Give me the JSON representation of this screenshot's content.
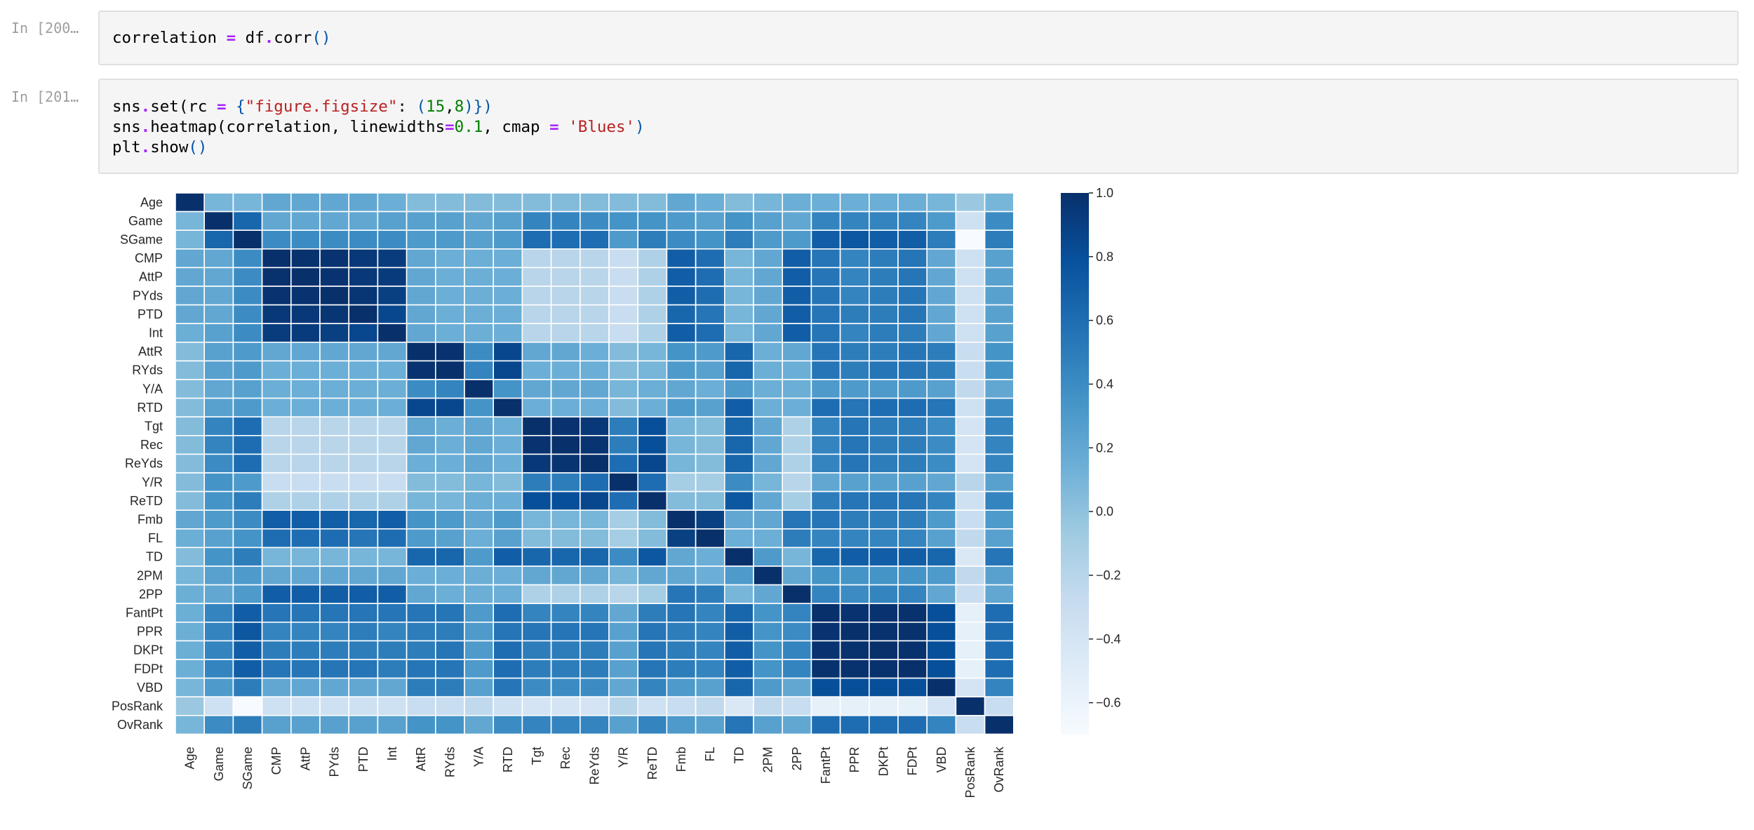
{
  "cells": [
    {
      "prompt": "In [200…",
      "lines": [
        [
          [
            "n",
            "correlation "
          ],
          [
            "o",
            "="
          ],
          [
            "n",
            " df"
          ],
          [
            "o",
            "."
          ],
          [
            "n",
            "corr"
          ],
          [
            "p",
            "()"
          ]
        ]
      ]
    },
    {
      "prompt": "In [201…",
      "lines": [
        [
          [
            "n",
            "sns"
          ],
          [
            "o",
            "."
          ],
          [
            "n",
            "set(rc "
          ],
          [
            "o",
            "="
          ],
          [
            "n",
            " "
          ],
          [
            "p",
            "{"
          ],
          [
            "s",
            "\"figure.figsize\""
          ],
          [
            "n",
            ": "
          ],
          [
            "p",
            "("
          ],
          [
            "g",
            "15"
          ],
          [
            "n",
            ","
          ],
          [
            "g",
            "8"
          ],
          [
            "p",
            ")})"
          ]
        ],
        [
          [
            "n",
            "sns"
          ],
          [
            "o",
            "."
          ],
          [
            "n",
            "heatmap(correlation, linewidths"
          ],
          [
            "o",
            "="
          ],
          [
            "g",
            "0.1"
          ],
          [
            "n",
            ", cmap "
          ],
          [
            "o",
            "="
          ],
          [
            "n",
            " "
          ],
          [
            "s",
            "'Blues'"
          ],
          [
            "p",
            ")"
          ]
        ],
        [
          [
            "n",
            "plt"
          ],
          [
            "o",
            "."
          ],
          [
            "n",
            "show"
          ],
          [
            "p",
            "()"
          ]
        ]
      ]
    }
  ],
  "colors": {
    "cmap_low": "#f7fbff",
    "cmap_high": "#08306b",
    "cell_bg": "#f5f5f5",
    "prompt": "#9e9e9e"
  },
  "chart_data": {
    "type": "heatmap",
    "title": "",
    "labels": [
      "Age",
      "Game",
      "SGame",
      "CMP",
      "AttP",
      "PYds",
      "PTD",
      "Int",
      "AttR",
      "RYds",
      "Y/A",
      "RTD",
      "Tgt",
      "Rec",
      "ReYds",
      "Y/R",
      "ReTD",
      "Fmb",
      "FL",
      "TD",
      "2PM",
      "2PP",
      "FantPt",
      "PPR",
      "DKPt",
      "FDPt",
      "VBD",
      "PosRank",
      "OvRank"
    ],
    "colorbar": {
      "ticks": [
        1.0,
        0.8,
        0.6,
        0.4,
        0.2,
        0.0,
        -0.2,
        -0.4,
        -0.6
      ],
      "tick_labels": [
        "1.0",
        "0.8",
        "0.6",
        "0.4",
        "0.2",
        "0.0",
        "−0.2",
        "−0.4",
        "−0.6"
      ],
      "vmin": -0.7,
      "vmax": 1.0
    },
    "cmap": "Blues",
    "values": [
      [
        1.0,
        0.1,
        0.1,
        0.2,
        0.2,
        0.2,
        0.2,
        0.15,
        0.05,
        0.05,
        0.05,
        0.05,
        0.05,
        0.05,
        0.05,
        0.05,
        0.05,
        0.2,
        0.15,
        0.05,
        0.1,
        0.15,
        0.15,
        0.15,
        0.15,
        0.15,
        0.1,
        -0.05,
        0.1
      ],
      [
        0.1,
        1.0,
        0.65,
        0.2,
        0.2,
        0.2,
        0.2,
        0.25,
        0.25,
        0.25,
        0.2,
        0.25,
        0.45,
        0.45,
        0.4,
        0.35,
        0.35,
        0.3,
        0.25,
        0.35,
        0.25,
        0.2,
        0.45,
        0.45,
        0.45,
        0.45,
        0.3,
        -0.35,
        0.4
      ],
      [
        0.1,
        0.65,
        1.0,
        0.4,
        0.4,
        0.4,
        0.4,
        0.4,
        0.3,
        0.3,
        0.25,
        0.3,
        0.6,
        0.6,
        0.6,
        0.3,
        0.5,
        0.4,
        0.35,
        0.5,
        0.3,
        0.3,
        0.7,
        0.75,
        0.7,
        0.7,
        0.5,
        -0.7,
        0.5
      ],
      [
        0.2,
        0.2,
        0.4,
        1.0,
        0.99,
        0.98,
        0.95,
        0.92,
        0.2,
        0.15,
        0.15,
        0.15,
        -0.2,
        -0.2,
        -0.2,
        -0.3,
        -0.15,
        0.7,
        0.6,
        0.1,
        0.2,
        0.7,
        0.55,
        0.45,
        0.5,
        0.55,
        0.2,
        -0.35,
        0.25
      ],
      [
        0.2,
        0.2,
        0.4,
        0.99,
        1.0,
        0.98,
        0.95,
        0.93,
        0.2,
        0.15,
        0.15,
        0.15,
        -0.2,
        -0.2,
        -0.2,
        -0.3,
        -0.15,
        0.7,
        0.6,
        0.1,
        0.2,
        0.7,
        0.55,
        0.45,
        0.5,
        0.55,
        0.2,
        -0.35,
        0.25
      ],
      [
        0.2,
        0.2,
        0.4,
        0.98,
        0.98,
        1.0,
        0.96,
        0.9,
        0.2,
        0.15,
        0.15,
        0.15,
        -0.2,
        -0.2,
        -0.2,
        -0.3,
        -0.15,
        0.7,
        0.6,
        0.1,
        0.2,
        0.7,
        0.55,
        0.45,
        0.5,
        0.55,
        0.2,
        -0.35,
        0.25
      ],
      [
        0.2,
        0.2,
        0.4,
        0.95,
        0.95,
        0.96,
        1.0,
        0.85,
        0.2,
        0.15,
        0.15,
        0.15,
        -0.2,
        -0.2,
        -0.2,
        -0.3,
        -0.15,
        0.65,
        0.55,
        0.1,
        0.2,
        0.7,
        0.55,
        0.5,
        0.5,
        0.55,
        0.2,
        -0.35,
        0.25
      ],
      [
        0.15,
        0.25,
        0.4,
        0.92,
        0.93,
        0.9,
        0.85,
        1.0,
        0.2,
        0.15,
        0.15,
        0.15,
        -0.2,
        -0.2,
        -0.2,
        -0.3,
        -0.15,
        0.7,
        0.6,
        0.1,
        0.2,
        0.7,
        0.55,
        0.45,
        0.5,
        0.5,
        0.2,
        -0.35,
        0.25
      ],
      [
        0.05,
        0.25,
        0.3,
        0.2,
        0.2,
        0.2,
        0.2,
        0.2,
        1.0,
        0.98,
        0.4,
        0.85,
        0.2,
        0.2,
        0.15,
        0.05,
        0.1,
        0.35,
        0.3,
        0.65,
        0.15,
        0.2,
        0.55,
        0.5,
        0.5,
        0.55,
        0.5,
        -0.3,
        0.35
      ],
      [
        0.05,
        0.25,
        0.3,
        0.15,
        0.15,
        0.15,
        0.15,
        0.15,
        0.98,
        1.0,
        0.45,
        0.85,
        0.15,
        0.15,
        0.15,
        0.05,
        0.1,
        0.3,
        0.25,
        0.65,
        0.15,
        0.15,
        0.55,
        0.5,
        0.55,
        0.55,
        0.5,
        -0.3,
        0.35
      ],
      [
        0.05,
        0.2,
        0.25,
        0.15,
        0.15,
        0.15,
        0.15,
        0.15,
        0.4,
        0.45,
        1.0,
        0.35,
        0.2,
        0.2,
        0.2,
        0.1,
        0.15,
        0.2,
        0.15,
        0.3,
        0.15,
        0.15,
        0.3,
        0.3,
        0.3,
        0.3,
        0.25,
        -0.25,
        0.2
      ],
      [
        0.05,
        0.25,
        0.3,
        0.15,
        0.15,
        0.15,
        0.15,
        0.15,
        0.85,
        0.85,
        0.35,
        1.0,
        0.15,
        0.15,
        0.15,
        0.05,
        0.15,
        0.3,
        0.25,
        0.7,
        0.15,
        0.15,
        0.6,
        0.55,
        0.6,
        0.6,
        0.55,
        -0.35,
        0.4
      ],
      [
        0.05,
        0.45,
        0.6,
        -0.2,
        -0.2,
        -0.2,
        -0.2,
        -0.2,
        0.2,
        0.15,
        0.2,
        0.15,
        1.0,
        0.98,
        0.95,
        0.5,
        0.8,
        0.1,
        0.05,
        0.65,
        0.2,
        -0.15,
        0.45,
        0.55,
        0.5,
        0.5,
        0.4,
        -0.4,
        0.45
      ],
      [
        0.05,
        0.45,
        0.6,
        -0.2,
        -0.2,
        -0.2,
        -0.2,
        -0.2,
        0.2,
        0.15,
        0.2,
        0.15,
        0.98,
        1.0,
        0.97,
        0.5,
        0.8,
        0.1,
        0.05,
        0.65,
        0.2,
        -0.15,
        0.45,
        0.55,
        0.5,
        0.5,
        0.4,
        -0.4,
        0.45
      ],
      [
        0.05,
        0.4,
        0.6,
        -0.2,
        -0.2,
        -0.2,
        -0.2,
        -0.2,
        0.15,
        0.15,
        0.2,
        0.15,
        0.95,
        0.97,
        1.0,
        0.6,
        0.85,
        0.1,
        0.05,
        0.65,
        0.2,
        -0.15,
        0.45,
        0.55,
        0.5,
        0.5,
        0.4,
        -0.4,
        0.45
      ],
      [
        0.05,
        0.35,
        0.3,
        -0.3,
        -0.3,
        -0.3,
        -0.3,
        -0.3,
        0.05,
        0.05,
        0.1,
        0.05,
        0.5,
        0.5,
        0.6,
        1.0,
        0.6,
        -0.1,
        -0.1,
        0.4,
        0.1,
        -0.2,
        0.2,
        0.25,
        0.25,
        0.25,
        0.2,
        -0.2,
        0.25
      ],
      [
        0.05,
        0.35,
        0.5,
        -0.15,
        -0.15,
        -0.15,
        -0.15,
        -0.15,
        0.1,
        0.1,
        0.15,
        0.15,
        0.8,
        0.8,
        0.85,
        0.6,
        1.0,
        0.05,
        0.05,
        0.75,
        0.2,
        -0.1,
        0.5,
        0.55,
        0.55,
        0.55,
        0.45,
        -0.35,
        0.45
      ],
      [
        0.2,
        0.3,
        0.4,
        0.7,
        0.7,
        0.7,
        0.65,
        0.7,
        0.35,
        0.3,
        0.2,
        0.3,
        0.1,
        0.1,
        0.1,
        -0.1,
        0.05,
        1.0,
        0.9,
        0.2,
        0.2,
        0.55,
        0.55,
        0.5,
        0.5,
        0.5,
        0.3,
        -0.3,
        0.3
      ],
      [
        0.15,
        0.25,
        0.35,
        0.6,
        0.6,
        0.6,
        0.55,
        0.6,
        0.3,
        0.25,
        0.15,
        0.25,
        0.05,
        0.05,
        0.05,
        -0.1,
        0.05,
        0.9,
        1.0,
        0.15,
        0.15,
        0.5,
        0.45,
        0.45,
        0.45,
        0.45,
        0.25,
        -0.25,
        0.25
      ],
      [
        0.05,
        0.35,
        0.5,
        0.1,
        0.1,
        0.1,
        0.1,
        0.1,
        0.65,
        0.65,
        0.3,
        0.7,
        0.65,
        0.65,
        0.65,
        0.4,
        0.75,
        0.2,
        0.15,
        1.0,
        0.3,
        0.1,
        0.65,
        0.7,
        0.7,
        0.7,
        0.65,
        -0.45,
        0.55
      ],
      [
        0.1,
        0.25,
        0.3,
        0.2,
        0.2,
        0.2,
        0.2,
        0.2,
        0.15,
        0.15,
        0.15,
        0.15,
        0.2,
        0.2,
        0.2,
        0.1,
        0.2,
        0.2,
        0.15,
        0.3,
        1.0,
        0.2,
        0.35,
        0.35,
        0.35,
        0.35,
        0.3,
        -0.25,
        0.25
      ],
      [
        0.15,
        0.2,
        0.3,
        0.7,
        0.7,
        0.7,
        0.7,
        0.7,
        0.2,
        0.15,
        0.15,
        0.15,
        -0.15,
        -0.15,
        -0.15,
        -0.2,
        -0.1,
        0.55,
        0.5,
        0.1,
        0.2,
        1.0,
        0.45,
        0.4,
        0.45,
        0.45,
        0.2,
        -0.3,
        0.2
      ],
      [
        0.15,
        0.45,
        0.7,
        0.55,
        0.55,
        0.55,
        0.55,
        0.55,
        0.55,
        0.55,
        0.3,
        0.6,
        0.45,
        0.45,
        0.45,
        0.2,
        0.5,
        0.55,
        0.45,
        0.65,
        0.35,
        0.45,
        1.0,
        0.98,
        0.98,
        0.99,
        0.8,
        -0.55,
        0.6
      ],
      [
        0.15,
        0.45,
        0.75,
        0.45,
        0.45,
        0.45,
        0.5,
        0.45,
        0.5,
        0.5,
        0.3,
        0.55,
        0.55,
        0.55,
        0.55,
        0.25,
        0.55,
        0.5,
        0.45,
        0.7,
        0.35,
        0.4,
        0.98,
        1.0,
        0.99,
        0.99,
        0.8,
        -0.55,
        0.6
      ],
      [
        0.15,
        0.45,
        0.7,
        0.5,
        0.5,
        0.5,
        0.5,
        0.5,
        0.5,
        0.55,
        0.3,
        0.6,
        0.5,
        0.5,
        0.5,
        0.25,
        0.55,
        0.5,
        0.45,
        0.7,
        0.35,
        0.45,
        0.98,
        0.99,
        1.0,
        0.99,
        0.8,
        -0.55,
        0.6
      ],
      [
        0.15,
        0.45,
        0.7,
        0.55,
        0.55,
        0.55,
        0.55,
        0.5,
        0.55,
        0.55,
        0.3,
        0.6,
        0.5,
        0.5,
        0.5,
        0.25,
        0.55,
        0.5,
        0.45,
        0.7,
        0.35,
        0.45,
        0.99,
        0.99,
        0.99,
        1.0,
        0.8,
        -0.55,
        0.6
      ],
      [
        0.1,
        0.3,
        0.5,
        0.2,
        0.2,
        0.2,
        0.2,
        0.2,
        0.5,
        0.5,
        0.25,
        0.55,
        0.4,
        0.4,
        0.4,
        0.2,
        0.45,
        0.3,
        0.25,
        0.65,
        0.3,
        0.2,
        0.8,
        0.8,
        0.8,
        0.8,
        1.0,
        -0.4,
        0.45
      ],
      [
        -0.05,
        -0.35,
        -0.7,
        -0.35,
        -0.35,
        -0.35,
        -0.35,
        -0.35,
        -0.3,
        -0.3,
        -0.25,
        -0.35,
        -0.4,
        -0.4,
        -0.4,
        -0.2,
        -0.35,
        -0.3,
        -0.25,
        -0.45,
        -0.25,
        -0.3,
        -0.55,
        -0.55,
        -0.55,
        -0.55,
        -0.4,
        1.0,
        -0.3
      ],
      [
        0.1,
        0.4,
        0.5,
        0.25,
        0.25,
        0.25,
        0.25,
        0.25,
        0.35,
        0.35,
        0.2,
        0.4,
        0.45,
        0.45,
        0.45,
        0.25,
        0.45,
        0.3,
        0.25,
        0.55,
        0.25,
        0.2,
        0.6,
        0.6,
        0.6,
        0.6,
        0.45,
        -0.3,
        1.0
      ]
    ]
  }
}
